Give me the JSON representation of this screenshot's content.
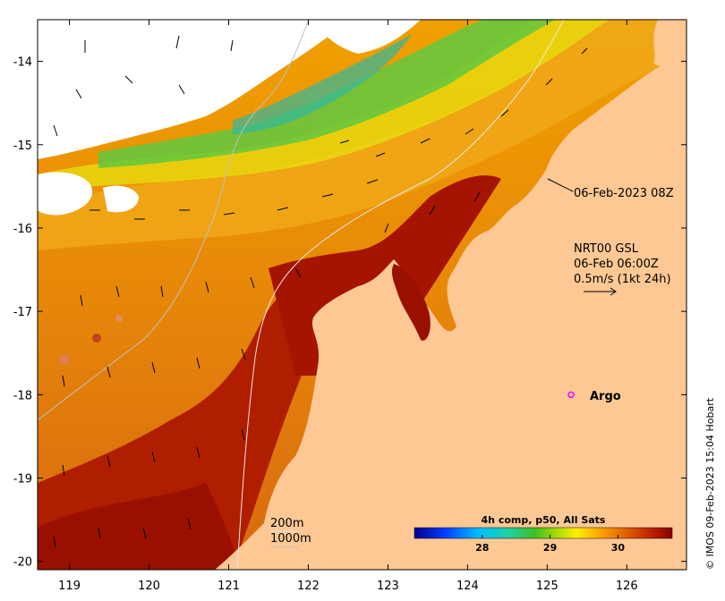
{
  "map": {
    "lon_ticks": [
      "119",
      "120",
      "121",
      "122",
      "123",
      "124",
      "125",
      "126"
    ],
    "lat_ticks": [
      "-14",
      "-15",
      "-16",
      "-17",
      "-18",
      "-19",
      "-20"
    ],
    "lon_range": [
      118.6,
      126.75
    ],
    "lat_range": [
      -20.1,
      -13.5
    ],
    "annotation_time": "06-Feb-2023 08Z",
    "current_label_1": "NRT00 GSL",
    "current_label_2": "06-Feb 06:00Z",
    "current_label_3": "0.5m/s (1kt 24h)",
    "argo_label": "Argo",
    "argo_position": {
      "lon": 125.3,
      "lat": -18.0
    },
    "contour_200": "200m",
    "contour_1000": "1000m",
    "colorbar_title": "4h comp, p50, All Sats",
    "colorbar_ticks": [
      "28",
      "29",
      "30"
    ],
    "colorbar_range": [
      27.0,
      30.8
    ],
    "credit": "© IMOS 09-Feb-2023 15:04 Hobart",
    "colors": {
      "land": "#fdc894",
      "cloud": "#ffffff",
      "cold": "#000090",
      "warm": "#8b0000"
    }
  }
}
